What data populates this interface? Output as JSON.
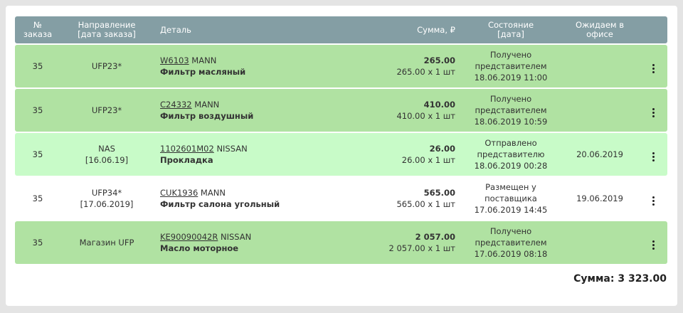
{
  "header": {
    "num": [
      "№",
      "заказа"
    ],
    "direction": [
      "Направление",
      "[дата заказа]"
    ],
    "part": "Деталь",
    "sum": "Сумма, ₽",
    "state": [
      "Состояние",
      "[дата]"
    ],
    "expected": [
      "Ожидаем в",
      "офисе"
    ]
  },
  "rows": [
    {
      "num": "35",
      "direction": "UFP23*",
      "direction_date": "",
      "code": "W6103",
      "brand": "MANN",
      "name": "Фильтр масляный",
      "sum": "265.00",
      "sum_detail": "265.00 x 1 шт",
      "state": "Получено",
      "state2": "представителем",
      "state_date": "18.06.2019 11:00",
      "expected": ""
    },
    {
      "num": "35",
      "direction": "UFP23*",
      "direction_date": "",
      "code": "C24332",
      "brand": "MANN",
      "name": "Фильтр воздушный",
      "sum": "410.00",
      "sum_detail": "410.00 x 1 шт",
      "state": "Получено",
      "state2": "представителем",
      "state_date": "18.06.2019 10:59",
      "expected": ""
    },
    {
      "num": "35",
      "direction": "NAS",
      "direction_date": "[16.06.19]",
      "code": "1102601M02",
      "brand": "NISSAN",
      "name": "Прокладка",
      "sum": "26.00",
      "sum_detail": "26.00 x 1 шт",
      "state": "Отправлено",
      "state2": "представителю",
      "state_date": "18.06.2019 00:28",
      "expected": "20.06.2019"
    },
    {
      "num": "35",
      "direction": "UFP34*",
      "direction_date": "[17.06.2019]",
      "code": "CUK1936",
      "brand": "MANN",
      "name": "Фильтр салона угольный",
      "sum": "565.00",
      "sum_detail": "565.00 x 1 шт",
      "state": "Размещен у",
      "state2": "поставщика",
      "state_date": "17.06.2019 14:45",
      "expected": "19.06.2019"
    },
    {
      "num": "35",
      "direction": "Магазин UFP",
      "direction_date": "",
      "code": "KE90090042R",
      "brand": "NISSAN",
      "name": "Масло моторное",
      "sum": "2 057.00",
      "sum_detail": "2 057.00 x 1 шт",
      "state": "Получено",
      "state2": "представителем",
      "state_date": "17.06.2019 08:18",
      "expected": ""
    }
  ],
  "total": "Сумма: 3 323.00",
  "colors": {
    "received": "#b0e2a2",
    "sent": "#c8fbc8",
    "placed": "#ffffff",
    "header": "#849ea4"
  }
}
